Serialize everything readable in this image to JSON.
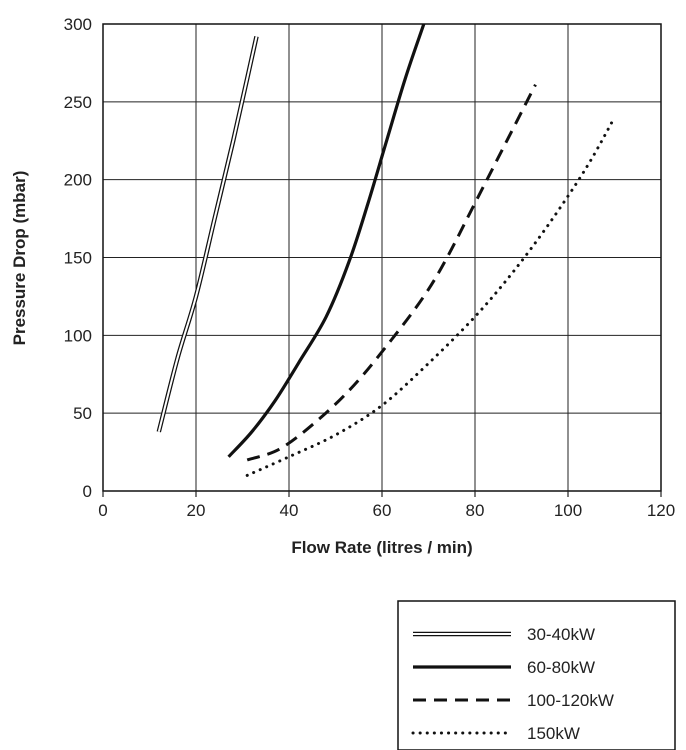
{
  "chart_data": {
    "type": "line",
    "title": "",
    "xlabel": "Flow Rate (litres / min)",
    "ylabel": "Pressure Drop (mbar)",
    "xlim": [
      0,
      120
    ],
    "ylim": [
      0,
      300
    ],
    "x_ticks": [
      0,
      20,
      40,
      60,
      80,
      100,
      120
    ],
    "y_ticks": [
      0,
      50,
      100,
      150,
      200,
      250,
      300
    ],
    "x_tick_labels": [
      "0",
      "20",
      "40",
      "60",
      "80",
      "100",
      "120"
    ],
    "y_tick_labels": [
      "0",
      "50",
      "100",
      "150",
      "200",
      "250",
      "300"
    ],
    "grid": true,
    "legend_position": "bottom-right, below plot",
    "series": [
      {
        "name": "30-40kW",
        "style": "double",
        "color": "#111111",
        "points": [
          [
            12,
            38
          ],
          [
            16,
            85
          ],
          [
            20,
            125
          ],
          [
            24,
            175
          ],
          [
            28,
            225
          ],
          [
            31,
            265
          ],
          [
            33,
            292
          ]
        ]
      },
      {
        "name": "60-80kW",
        "style": "solid",
        "color": "#111111",
        "points": [
          [
            27,
            22
          ],
          [
            32,
            38
          ],
          [
            37,
            58
          ],
          [
            42,
            82
          ],
          [
            48,
            112
          ],
          [
            53,
            148
          ],
          [
            57,
            185
          ],
          [
            61,
            225
          ],
          [
            65,
            265
          ],
          [
            69,
            300
          ]
        ]
      },
      {
        "name": "100-120kW",
        "style": "dashed",
        "color": "#111111",
        "points": [
          [
            31,
            20
          ],
          [
            38,
            27
          ],
          [
            46,
            45
          ],
          [
            54,
            68
          ],
          [
            62,
            97
          ],
          [
            69,
            125
          ],
          [
            74,
            150
          ],
          [
            80,
            185
          ],
          [
            86,
            220
          ],
          [
            93,
            261
          ]
        ]
      },
      {
        "name": "150kW",
        "style": "dotted",
        "color": "#111111",
        "points": [
          [
            31,
            10
          ],
          [
            40,
            22
          ],
          [
            50,
            36
          ],
          [
            60,
            55
          ],
          [
            70,
            82
          ],
          [
            80,
            112
          ],
          [
            88,
            140
          ],
          [
            96,
            172
          ],
          [
            104,
            208
          ],
          [
            110,
            240
          ]
        ]
      }
    ]
  }
}
